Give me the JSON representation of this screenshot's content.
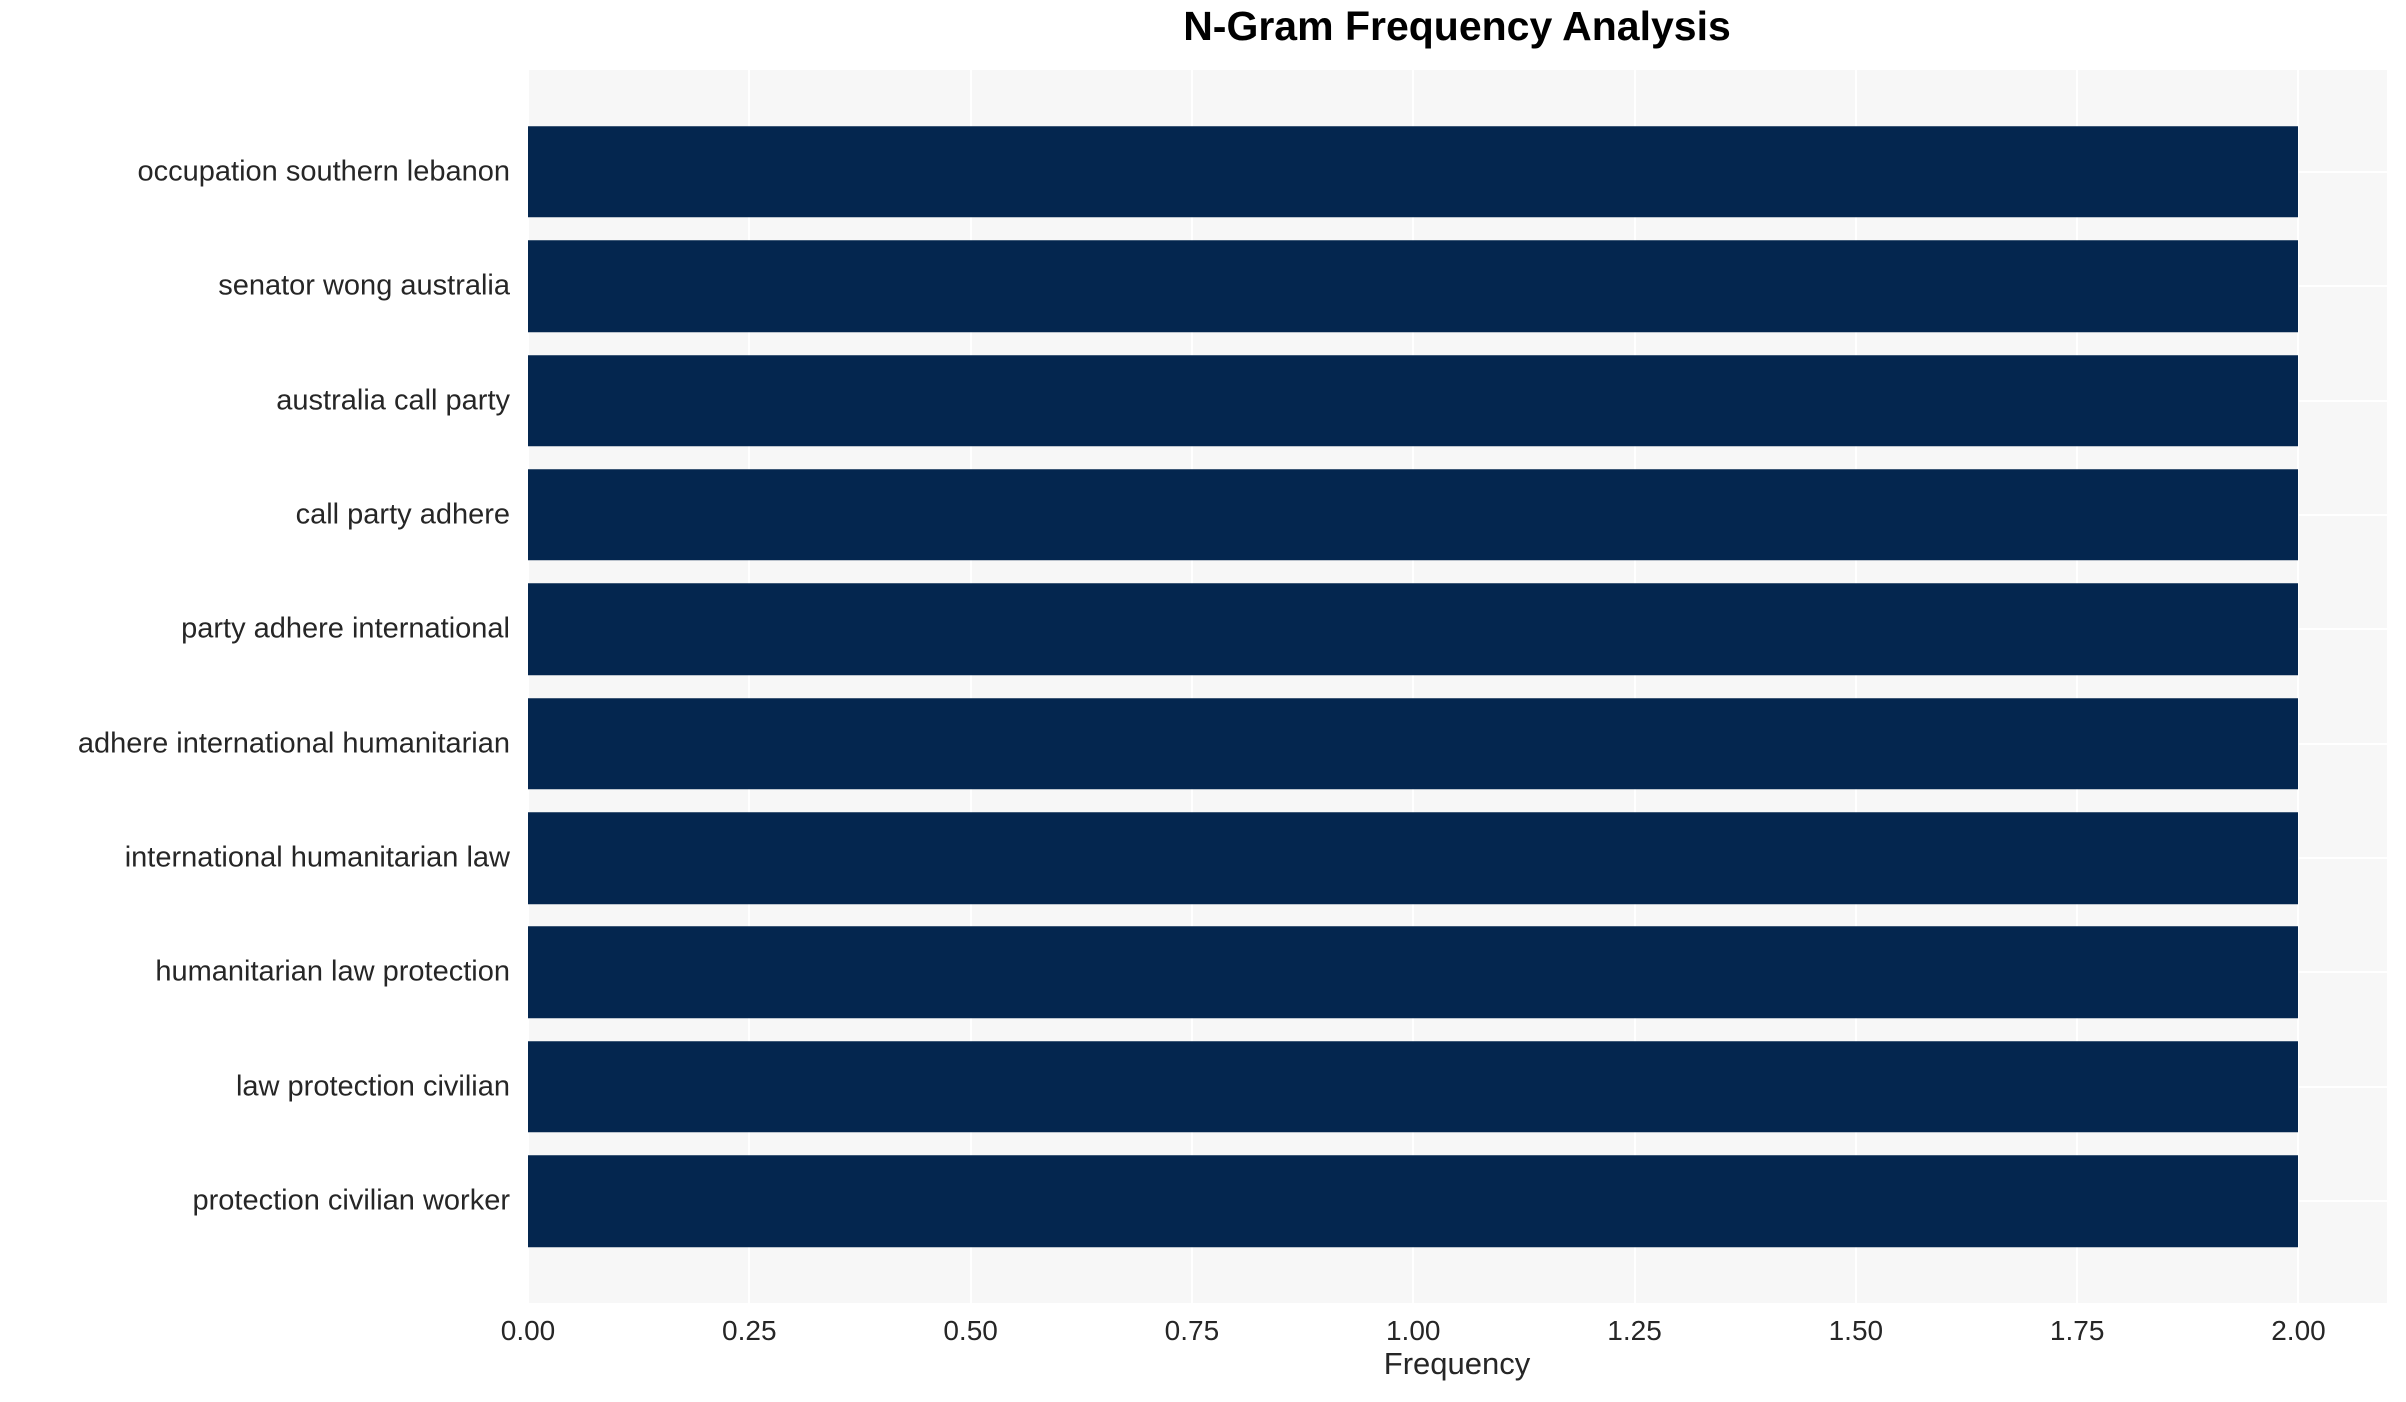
{
  "chart_data": {
    "type": "bar",
    "orientation": "horizontal",
    "title": "N-Gram Frequency Analysis",
    "xlabel": "Frequency",
    "ylabel": "",
    "categories": [
      "occupation southern lebanon",
      "senator wong australia",
      "australia call party",
      "call party adhere",
      "party adhere international",
      "adhere international humanitarian",
      "international humanitarian law",
      "humanitarian law protection",
      "law protection civilian",
      "protection civilian worker"
    ],
    "values": [
      2,
      2,
      2,
      2,
      2,
      2,
      2,
      2,
      2,
      2
    ],
    "xlim": [
      0,
      2.1
    ],
    "xticks": [
      0,
      0.25,
      0.5,
      0.75,
      1.0,
      1.25,
      1.5,
      1.75,
      2.0
    ],
    "xtick_labels": [
      "0.00",
      "0.25",
      "0.50",
      "0.75",
      "1.00",
      "1.25",
      "1.50",
      "1.75",
      "2.00"
    ],
    "grid": true,
    "legend_position": "none",
    "colors": {
      "bar": "#04264f",
      "plot_bg": "#f7f7f7",
      "grid": "#ffffff",
      "text": "#262626",
      "title": "#000000"
    }
  }
}
